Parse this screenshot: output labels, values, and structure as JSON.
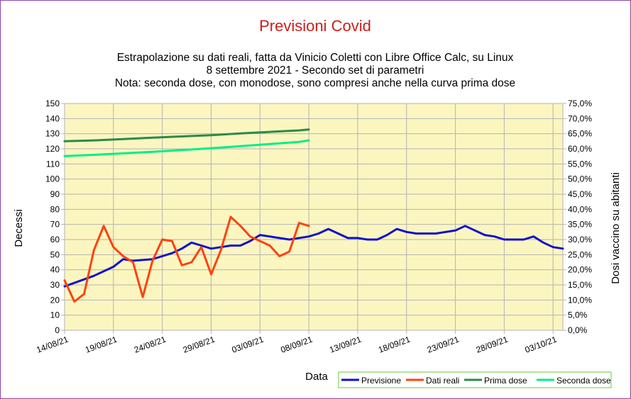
{
  "chart_data": {
    "type": "line",
    "title": "Previsioni Covid",
    "subtitle_lines": [
      "Estrapolazione su dati reali, fatta da Vinicio Coletti con Libre Office Calc, su Linux",
      "8 settembre 2021 - Secondo set di parametri",
      "Nota: seconda dose, con monodose, sono compresi anche nella curva prima dose"
    ],
    "xlabel": "Data",
    "ylabel": "Decessi",
    "y2label": "Dosi vaccino su abitanti",
    "ylim": [
      0,
      150
    ],
    "y_ticks": [
      "0",
      "10",
      "20",
      "30",
      "40",
      "50",
      "60",
      "70",
      "80",
      "90",
      "100",
      "110",
      "120",
      "130",
      "140",
      "150"
    ],
    "y2lim": [
      0,
      0.75
    ],
    "y2_ticks": [
      "0,0%",
      "5,0%",
      "10,0%",
      "15,0%",
      "20,0%",
      "25,0%",
      "30,0%",
      "35,0%",
      "40,0%",
      "45,0%",
      "50,0%",
      "55,0%",
      "60,0%",
      "65,0%",
      "70,0%",
      "75,0%"
    ],
    "x_range": [
      "2021-08-14",
      "2021-10-04"
    ],
    "x_ticks": [
      "14/08/21",
      "19/08/21",
      "24/08/21",
      "29/08/21",
      "03/09/21",
      "08/09/21",
      "13/09/21",
      "18/09/21",
      "23/09/21",
      "28/09/21",
      "03/10/21"
    ],
    "grid": true,
    "plot_background": "#fbf6c0",
    "legend_position": "bottom-right",
    "series": [
      {
        "name": "Previsione",
        "color": "#1010cc",
        "axis": "left",
        "x": [
          "2021-08-14",
          "2021-08-17",
          "2021-08-19",
          "2021-08-20",
          "2021-08-21",
          "2021-08-23",
          "2021-08-24",
          "2021-08-25",
          "2021-08-26",
          "2021-08-27",
          "2021-08-28",
          "2021-08-29",
          "2021-08-30",
          "2021-08-31",
          "2021-09-01",
          "2021-09-02",
          "2021-09-03",
          "2021-09-04",
          "2021-09-06",
          "2021-09-08",
          "2021-09-09",
          "2021-09-10",
          "2021-09-11",
          "2021-09-12",
          "2021-09-13",
          "2021-09-14",
          "2021-09-15",
          "2021-09-16",
          "2021-09-17",
          "2021-09-18",
          "2021-09-19",
          "2021-09-20",
          "2021-09-21",
          "2021-09-22",
          "2021-09-23",
          "2021-09-24",
          "2021-09-25",
          "2021-09-26",
          "2021-09-27",
          "2021-09-28",
          "2021-09-29",
          "2021-09-30",
          "2021-10-01",
          "2021-10-02",
          "2021-10-03",
          "2021-10-04"
        ],
        "values": [
          29,
          36,
          42,
          47,
          46,
          47,
          49,
          51,
          54,
          58,
          56,
          54,
          55,
          56,
          56,
          59,
          63,
          62,
          60,
          62,
          64,
          67,
          64,
          61,
          61,
          60,
          60,
          63,
          67,
          65,
          64,
          64,
          64,
          65,
          66,
          69,
          66,
          63,
          62,
          60,
          60,
          60,
          62,
          58,
          55,
          54
        ]
      },
      {
        "name": "Dati reali",
        "color": "#ff420e",
        "axis": "left",
        "x": [
          "2021-08-14",
          "2021-08-15",
          "2021-08-16",
          "2021-08-17",
          "2021-08-18",
          "2021-08-19",
          "2021-08-20",
          "2021-08-21",
          "2021-08-22",
          "2021-08-23",
          "2021-08-24",
          "2021-08-25",
          "2021-08-26",
          "2021-08-27",
          "2021-08-28",
          "2021-08-29",
          "2021-08-30",
          "2021-08-31",
          "2021-09-01",
          "2021-09-02",
          "2021-09-03",
          "2021-09-04",
          "2021-09-05",
          "2021-09-06",
          "2021-09-07",
          "2021-09-08",
          "2021-09-09"
        ],
        "values": [
          33,
          19,
          24,
          53,
          69,
          55,
          49,
          45,
          22,
          46,
          60,
          59,
          43,
          45,
          55,
          37,
          53,
          75,
          69,
          62,
          59,
          56,
          49,
          52,
          71,
          69,
          null
        ]
      },
      {
        "name": "Prima dose",
        "color": "#2a8a4a",
        "axis": "right",
        "x": [
          "2021-08-14",
          "2021-08-17",
          "2021-08-20",
          "2021-08-23",
          "2021-08-26",
          "2021-08-29",
          "2021-09-01",
          "2021-09-04",
          "2021-09-07",
          "2021-09-08"
        ],
        "values": [
          0.625,
          0.628,
          0.632,
          0.637,
          0.641,
          0.645,
          0.651,
          0.656,
          0.661,
          0.664
        ]
      },
      {
        "name": "Seconda dose",
        "color": "#00ee88",
        "axis": "right",
        "x": [
          "2021-08-14",
          "2021-08-17",
          "2021-08-20",
          "2021-08-23",
          "2021-08-26",
          "2021-08-29",
          "2021-09-01",
          "2021-09-04",
          "2021-09-07",
          "2021-09-08"
        ],
        "values": [
          0.576,
          0.58,
          0.585,
          0.59,
          0.596,
          0.602,
          0.609,
          0.616,
          0.623,
          0.628
        ]
      }
    ]
  }
}
